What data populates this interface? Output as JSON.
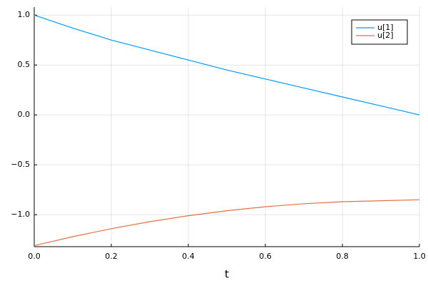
{
  "chart_data": {
    "type": "line",
    "xlabel": "t",
    "x": [
      0,
      0.1,
      0.2,
      0.3,
      0.4,
      0.5,
      0.6,
      0.7,
      0.8,
      0.9,
      1.0
    ],
    "series": [
      {
        "name": "u[1]",
        "color": "#009af9",
        "values": [
          1.0,
          0.87,
          0.75,
          0.65,
          0.55,
          0.45,
          0.36,
          0.27,
          0.18,
          0.09,
          0.0
        ]
      },
      {
        "name": "u[2]",
        "color": "#e26f46",
        "values": [
          -1.31,
          -1.22,
          -1.14,
          -1.07,
          -1.01,
          -0.96,
          -0.92,
          -0.89,
          -0.87,
          -0.86,
          -0.85
        ]
      }
    ],
    "xlim": [
      0,
      1
    ],
    "ylim": [
      -1.32,
      1.08
    ],
    "xticks": [
      {
        "value": 0,
        "label": "0.0"
      },
      {
        "value": 0.2,
        "label": "0.2"
      },
      {
        "value": 0.4,
        "label": "0.4"
      },
      {
        "value": 0.6,
        "label": "0.6"
      },
      {
        "value": 0.8,
        "label": "0.8"
      },
      {
        "value": 1,
        "label": "1.0"
      }
    ],
    "yticks": [
      {
        "value": -1,
        "label": "−1.0"
      },
      {
        "value": -0.5,
        "label": "−0.5"
      },
      {
        "value": 0,
        "label": "0.0"
      },
      {
        "value": 0.5,
        "label": "0.5"
      },
      {
        "value": 1,
        "label": "1.0"
      }
    ],
    "grid": true,
    "legend": "top-right"
  }
}
